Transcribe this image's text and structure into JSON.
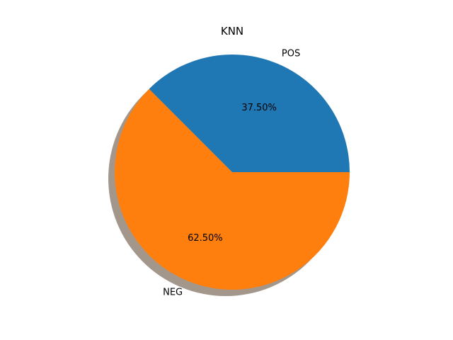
{
  "chart_data": {
    "type": "pie",
    "title": "KNN",
    "slices": [
      {
        "label": "POS",
        "value": 37.5,
        "pct_label": "37.50%",
        "color": "#1f77b4"
      },
      {
        "label": "NEG",
        "value": 62.5,
        "pct_label": "62.50%",
        "color": "#ff7f0e"
      }
    ],
    "start_angle_deg": 0,
    "direction": "counterclockwise",
    "shadow": true,
    "shadow_color": "#a3968a"
  }
}
